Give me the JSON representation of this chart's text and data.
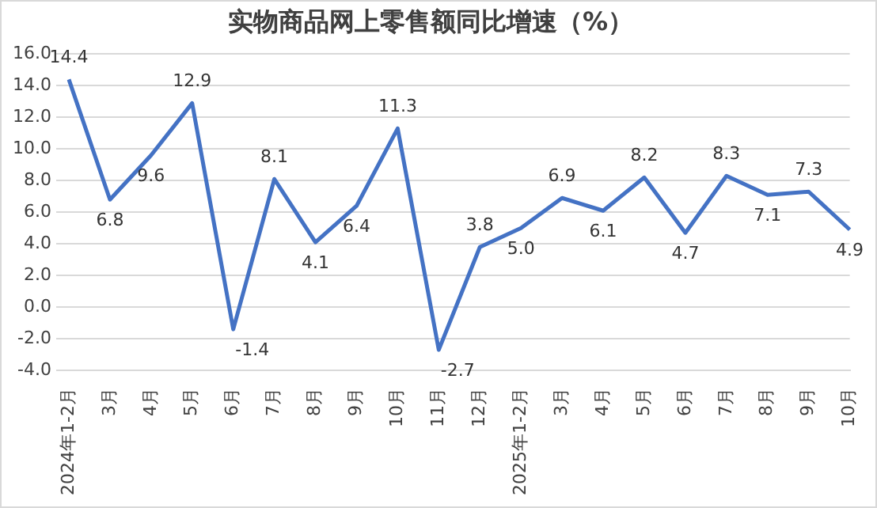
{
  "chart_data": {
    "type": "line",
    "title": "实物商品网上零售额同比增速（%）",
    "categories": [
      "2024年1-2月",
      "3月",
      "4月",
      "5月",
      "6月",
      "7月",
      "8月",
      "9月",
      "10月",
      "11月",
      "12月",
      "2025年1-2月",
      "3月",
      "4月",
      "5月",
      "6月",
      "7月",
      "8月",
      "9月",
      "10月"
    ],
    "series": [
      {
        "color": "#4472c4",
        "values": [
          14.4,
          6.8,
          9.6,
          12.9,
          -1.4,
          8.1,
          4.1,
          6.4,
          11.3,
          -2.7,
          3.8,
          5.0,
          6.9,
          6.1,
          8.2,
          4.7,
          8.3,
          7.1,
          7.3,
          4.9
        ],
        "value_labels": [
          "14.4",
          "6.8",
          "9.6",
          "12.9",
          "-1.4",
          "8.1",
          "4.1",
          "6.4",
          "11.3",
          "-2.7",
          "3.8",
          "5.0",
          "6.9",
          "6.1",
          "8.2",
          "4.7",
          "8.3",
          "7.1",
          "7.3",
          "4.9"
        ]
      }
    ],
    "ylim": [
      -4,
      16
    ],
    "yticks": [
      {
        "value": -4,
        "label": "-4.0"
      },
      {
        "value": -2,
        "label": "-2.0"
      },
      {
        "value": 0,
        "label": "0.0"
      },
      {
        "value": 2,
        "label": "2.0"
      },
      {
        "value": 4,
        "label": "4.0"
      },
      {
        "value": 6,
        "label": "6.0"
      },
      {
        "value": 8,
        "label": "8.0"
      },
      {
        "value": 10,
        "label": "10.0"
      },
      {
        "value": 12,
        "label": "12.0"
      },
      {
        "value": 14,
        "label": "14.0"
      },
      {
        "value": 16,
        "label": "16.0"
      }
    ],
    "grid": "y",
    "legend": false,
    "marker": "none",
    "line_style": "solid"
  }
}
